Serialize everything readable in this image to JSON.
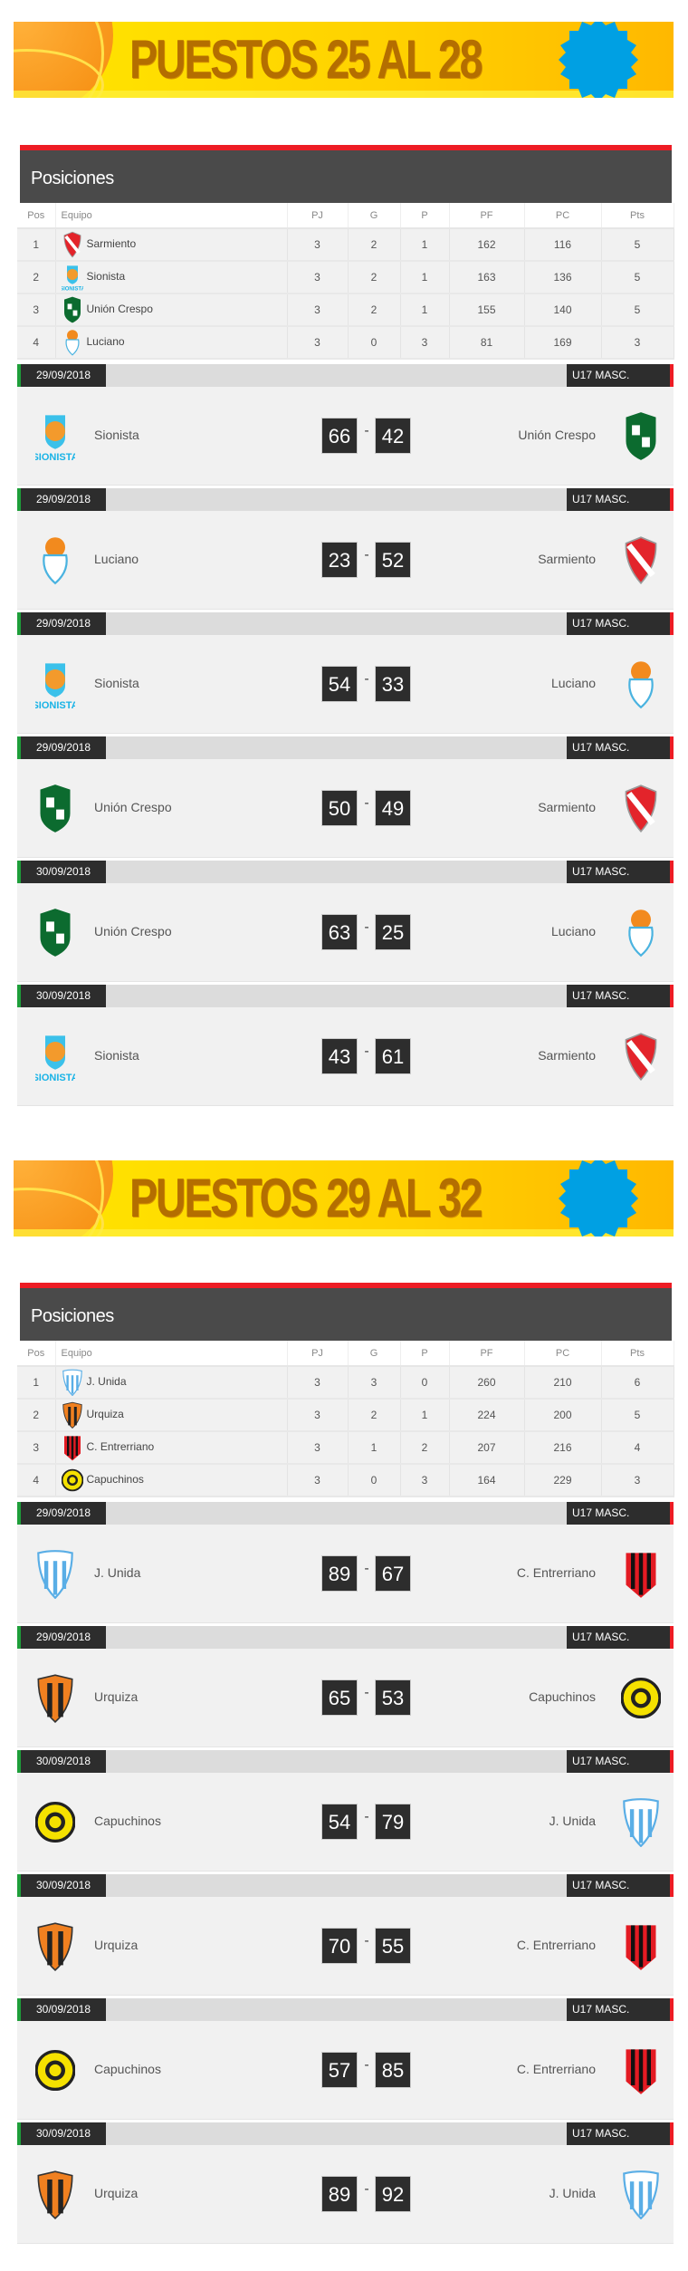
{
  "sections": [
    {
      "banner_title": "PUESTOS  25 AL 28",
      "standings_title": "Posiciones",
      "columns": [
        "Pos",
        "Equipo",
        "PJ",
        "G",
        "P",
        "PF",
        "PC",
        "Pts"
      ],
      "rows": [
        {
          "pos": "1",
          "team": "Sarmiento",
          "logo": "sarmiento",
          "pj": "3",
          "g": "2",
          "p": "1",
          "pf": "162",
          "pc": "116",
          "pts": "5"
        },
        {
          "pos": "2",
          "team": "Sionista",
          "logo": "sionista",
          "pj": "3",
          "g": "2",
          "p": "1",
          "pf": "163",
          "pc": "136",
          "pts": "5"
        },
        {
          "pos": "3",
          "team": "Unión Crespo",
          "logo": "union",
          "pj": "3",
          "g": "2",
          "p": "1",
          "pf": "155",
          "pc": "140",
          "pts": "5"
        },
        {
          "pos": "4",
          "team": "Luciano",
          "logo": "luciano",
          "pj": "3",
          "g": "0",
          "p": "3",
          "pf": "81",
          "pc": "169",
          "pts": "3"
        }
      ],
      "matches": [
        {
          "date": "29/09/2018",
          "category": "U17 MASC.",
          "home": "Sionista",
          "home_logo": "sionista",
          "home_score": "66",
          "away_score": "42",
          "away": "Unión Crespo",
          "away_logo": "union"
        },
        {
          "date": "29/09/2018",
          "category": "U17 MASC.",
          "home": "Luciano",
          "home_logo": "luciano",
          "home_score": "23",
          "away_score": "52",
          "away": "Sarmiento",
          "away_logo": "sarmiento"
        },
        {
          "date": "29/09/2018",
          "category": "U17 MASC.",
          "home": "Sionista",
          "home_logo": "sionista",
          "home_score": "54",
          "away_score": "33",
          "away": "Luciano",
          "away_logo": "luciano"
        },
        {
          "date": "29/09/2018",
          "category": "U17 MASC.",
          "home": "Unión Crespo",
          "home_logo": "union",
          "home_score": "50",
          "away_score": "49",
          "away": "Sarmiento",
          "away_logo": "sarmiento"
        },
        {
          "date": "30/09/2018",
          "category": "U17 MASC.",
          "home": "Unión Crespo",
          "home_logo": "union",
          "home_score": "63",
          "away_score": "25",
          "away": "Luciano",
          "away_logo": "luciano"
        },
        {
          "date": "30/09/2018",
          "category": "U17 MASC.",
          "home": "Sionista",
          "home_logo": "sionista",
          "home_score": "43",
          "away_score": "61",
          "away": "Sarmiento",
          "away_logo": "sarmiento"
        }
      ]
    },
    {
      "banner_title": "PUESTOS  29 AL 32",
      "standings_title": "Posiciones",
      "columns": [
        "Pos",
        "Equipo",
        "PJ",
        "G",
        "P",
        "PF",
        "PC",
        "Pts"
      ],
      "rows": [
        {
          "pos": "1",
          "team": "J. Unida",
          "logo": "junida",
          "pj": "3",
          "g": "3",
          "p": "0",
          "pf": "260",
          "pc": "210",
          "pts": "6"
        },
        {
          "pos": "2",
          "team": "Urquiza",
          "logo": "urquiza",
          "pj": "3",
          "g": "2",
          "p": "1",
          "pf": "224",
          "pc": "200",
          "pts": "5"
        },
        {
          "pos": "3",
          "team": "C. Entrerriano",
          "logo": "entrerriano",
          "pj": "3",
          "g": "1",
          "p": "2",
          "pf": "207",
          "pc": "216",
          "pts": "4"
        },
        {
          "pos": "4",
          "team": "Capuchinos",
          "logo": "capuchinos",
          "pj": "3",
          "g": "0",
          "p": "3",
          "pf": "164",
          "pc": "229",
          "pts": "3"
        }
      ],
      "matches": [
        {
          "date": "29/09/2018",
          "category": "U17 MASC.",
          "home": "J. Unida",
          "home_logo": "junida",
          "home_score": "89",
          "away_score": "67",
          "away": "C. Entrerriano",
          "away_logo": "entrerriano"
        },
        {
          "date": "29/09/2018",
          "category": "U17 MASC.",
          "home": "Urquiza",
          "home_logo": "urquiza",
          "home_score": "65",
          "away_score": "53",
          "away": "Capuchinos",
          "away_logo": "capuchinos"
        },
        {
          "date": "30/09/2018",
          "category": "U17 MASC.",
          "home": "Capuchinos",
          "home_logo": "capuchinos",
          "home_score": "54",
          "away_score": "79",
          "away": "J. Unida",
          "away_logo": "junida"
        },
        {
          "date": "30/09/2018",
          "category": "U17 MASC.",
          "home": "Urquiza",
          "home_logo": "urquiza",
          "home_score": "70",
          "away_score": "55",
          "away": "C. Entrerriano",
          "away_logo": "entrerriano"
        },
        {
          "date": "30/09/2018",
          "category": "U17 MASC.",
          "home": "Capuchinos",
          "home_logo": "capuchinos",
          "home_score": "57",
          "away_score": "85",
          "away": "C. Entrerriano",
          "away_logo": "entrerriano"
        },
        {
          "date": "30/09/2018",
          "category": "U17 MASC.",
          "home": "Urquiza",
          "home_logo": "urquiza",
          "home_score": "89",
          "away_score": "92",
          "away": "J. Unida",
          "away_logo": "junida"
        }
      ]
    }
  ],
  "colors": {
    "accent_red": "#ed1c24",
    "accent_green": "#1e9e3a",
    "dark": "#2d2d2d",
    "header": "#4a4a4a",
    "banner_text": "#b46e00",
    "seal": "#00a0e3"
  }
}
